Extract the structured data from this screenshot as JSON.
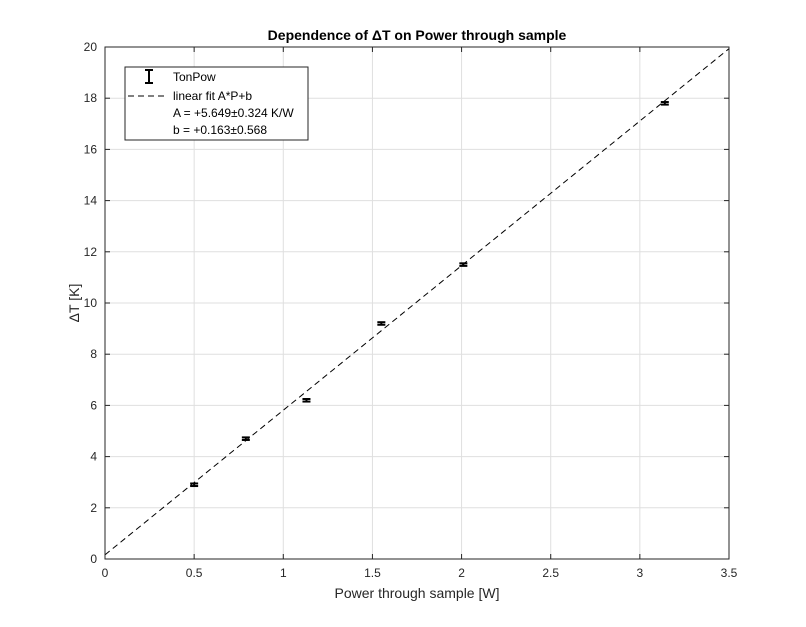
{
  "chart_data": {
    "type": "scatter",
    "title": "Dependence of ΔT on Power through sample",
    "xlabel": "Power through sample [W]",
    "ylabel": "ΔT [K]",
    "xlim": [
      0,
      3.5
    ],
    "ylim": [
      0,
      20
    ],
    "xticks": [
      "0",
      "0.5",
      "1",
      "1.5",
      "2",
      "2.5",
      "3",
      "3.5"
    ],
    "yticks": [
      "0",
      "2",
      "4",
      "6",
      "8",
      "10",
      "12",
      "14",
      "16",
      "18",
      "20"
    ],
    "grid": true,
    "legend_position": "top-left",
    "series": [
      {
        "name": "TonPow",
        "kind": "errorbar",
        "points": [
          {
            "x": 0.5,
            "y": 2.9,
            "y_err": 0.05
          },
          {
            "x": 0.79,
            "y": 4.7,
            "y_err": 0.05
          },
          {
            "x": 1.13,
            "y": 6.2,
            "y_err": 0.05
          },
          {
            "x": 1.55,
            "y": 9.2,
            "y_err": 0.05
          },
          {
            "x": 2.01,
            "y": 11.5,
            "y_err": 0.05
          },
          {
            "x": 3.14,
            "y": 17.8,
            "y_err": 0.05
          }
        ],
        "color": "#000000"
      },
      {
        "name": "linear fit A*P+b",
        "kind": "line",
        "style": "dashed",
        "slope": 5.649,
        "intercept": 0.163,
        "color": "#000000"
      }
    ],
    "legend_lines": [
      "A = +5.649±0.324 K/W",
      "b = +0.163±0.568"
    ]
  }
}
